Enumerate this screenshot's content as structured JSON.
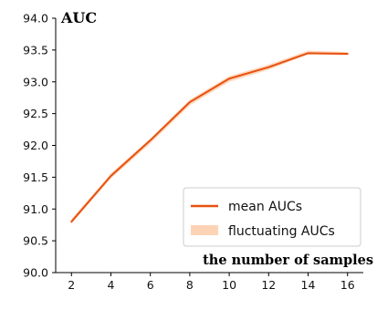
{
  "chart_data": {
    "type": "line",
    "title": "",
    "xlabel": "the number of samples",
    "ylabel": "AUC",
    "x": [
      2,
      4,
      6,
      8,
      10,
      12,
      14,
      16
    ],
    "xticks": [
      "2",
      "4",
      "6",
      "8",
      "10",
      "12",
      "14",
      "16"
    ],
    "yticks": [
      "90.0",
      "90.5",
      "91.0",
      "91.5",
      "92.0",
      "92.5",
      "93.0",
      "93.5",
      "94.0"
    ],
    "xlim": [
      1.2,
      16.8
    ],
    "ylim": [
      90.0,
      94.0
    ],
    "series": [
      {
        "name": "mean AUCs",
        "color": "#e8500f",
        "values": [
          90.8,
          91.52,
          92.08,
          92.68,
          93.05,
          93.23,
          93.45,
          93.44
        ]
      },
      {
        "name": "fluctuating AUCs",
        "color": "#fdd3b5",
        "lower": [
          90.77,
          91.48,
          92.03,
          92.63,
          93.0,
          93.19,
          93.43,
          93.42
        ],
        "upper": [
          90.84,
          91.56,
          92.11,
          92.72,
          93.09,
          93.27,
          93.49,
          93.47
        ]
      }
    ],
    "legend": {
      "position": "bottom-right",
      "entries": [
        "mean AUCs",
        "fluctuating AUCs"
      ]
    },
    "grid": false
  }
}
